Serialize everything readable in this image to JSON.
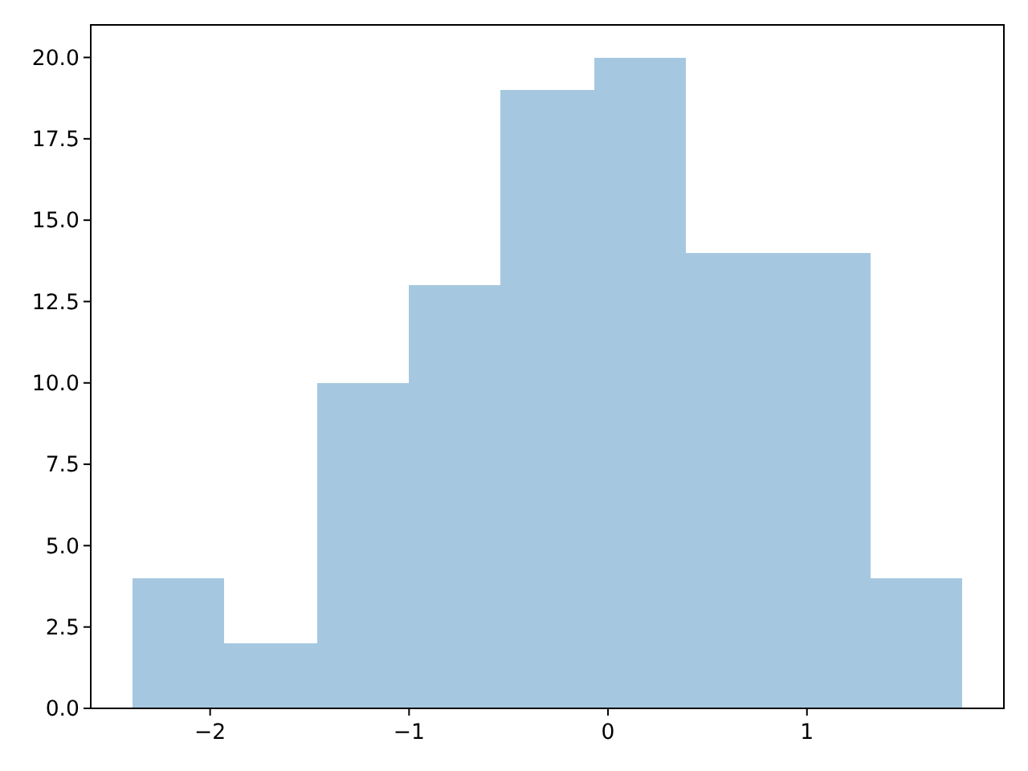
{
  "chart_data": {
    "type": "histogram",
    "bins": [
      -2.39,
      -1.93,
      -1.46,
      -1.0,
      -0.54,
      -0.07,
      0.39,
      0.85,
      1.32,
      1.78
    ],
    "values": [
      4,
      2,
      10,
      13,
      19,
      20,
      14,
      14,
      4
    ],
    "color": "#a5c8e0",
    "xlim": [
      -2.6,
      1.99
    ],
    "xticks": [
      {
        "value": -2,
        "label": "−2"
      },
      {
        "value": -1,
        "label": "−1"
      },
      0,
      1
    ],
    "ylim": [
      0,
      21
    ],
    "yticks": [
      {
        "value": 0,
        "label": "0.0"
      },
      {
        "value": 2.5,
        "label": "2.5"
      },
      {
        "value": 5,
        "label": "5.0"
      },
      {
        "value": 7.5,
        "label": "7.5"
      },
      {
        "value": 10,
        "label": "10.0"
      },
      {
        "value": 12.5,
        "label": "12.5"
      },
      {
        "value": 15,
        "label": "15.0"
      },
      {
        "value": 17.5,
        "label": "17.5"
      },
      {
        "value": 20,
        "label": "20.0"
      }
    ],
    "grid": false
  }
}
